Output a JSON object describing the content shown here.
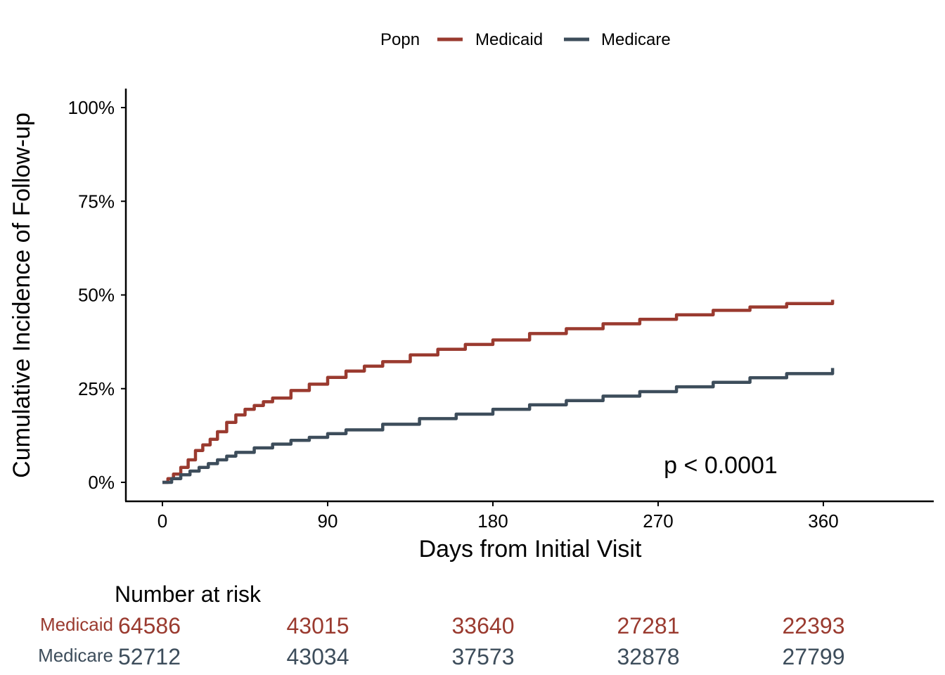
{
  "chart_data": {
    "type": "line",
    "xlabel": "Days from Initial Visit",
    "ylabel": "Cumulative Incidence of Follow-up",
    "xlim": [
      -20,
      420
    ],
    "ylim": [
      -0.05,
      1.05
    ],
    "x_ticks": [
      0,
      90,
      180,
      270,
      360
    ],
    "x_tick_labels": [
      "0",
      "90",
      "180",
      "270",
      "360"
    ],
    "y_ticks": [
      0,
      0.25,
      0.5,
      0.75,
      1.0
    ],
    "y_tick_labels": [
      "0%",
      "25%",
      "50%",
      "75%",
      "100%"
    ],
    "grid": false,
    "legend": {
      "title": "Popn",
      "position": "top",
      "entries": [
        "Medicaid",
        "Medicare"
      ]
    },
    "annotation": "p < 0.0001",
    "series": [
      {
        "name": "Medicaid",
        "color": "#9a3a2f",
        "points": [
          [
            0,
            0
          ],
          [
            3,
            0.01
          ],
          [
            6,
            0.022
          ],
          [
            10,
            0.04
          ],
          [
            14,
            0.06
          ],
          [
            18,
            0.085
          ],
          [
            22,
            0.1
          ],
          [
            26,
            0.115
          ],
          [
            30,
            0.135
          ],
          [
            35,
            0.16
          ],
          [
            40,
            0.18
          ],
          [
            45,
            0.195
          ],
          [
            50,
            0.205
          ],
          [
            55,
            0.215
          ],
          [
            60,
            0.225
          ],
          [
            70,
            0.245
          ],
          [
            80,
            0.262
          ],
          [
            90,
            0.28
          ],
          [
            100,
            0.297
          ],
          [
            110,
            0.31
          ],
          [
            120,
            0.322
          ],
          [
            135,
            0.34
          ],
          [
            150,
            0.355
          ],
          [
            165,
            0.368
          ],
          [
            180,
            0.38
          ],
          [
            200,
            0.397
          ],
          [
            220,
            0.41
          ],
          [
            240,
            0.423
          ],
          [
            260,
            0.435
          ],
          [
            280,
            0.447
          ],
          [
            300,
            0.459
          ],
          [
            320,
            0.468
          ],
          [
            340,
            0.477
          ],
          [
            365,
            0.487
          ]
        ]
      },
      {
        "name": "Medicare",
        "color": "#3d4d5b",
        "points": [
          [
            0,
            0
          ],
          [
            5,
            0.01
          ],
          [
            10,
            0.02
          ],
          [
            15,
            0.03
          ],
          [
            20,
            0.04
          ],
          [
            25,
            0.05
          ],
          [
            30,
            0.06
          ],
          [
            35,
            0.07
          ],
          [
            40,
            0.08
          ],
          [
            50,
            0.092
          ],
          [
            60,
            0.102
          ],
          [
            70,
            0.112
          ],
          [
            80,
            0.12
          ],
          [
            90,
            0.13
          ],
          [
            100,
            0.14
          ],
          [
            120,
            0.155
          ],
          [
            140,
            0.17
          ],
          [
            160,
            0.182
          ],
          [
            180,
            0.195
          ],
          [
            200,
            0.207
          ],
          [
            220,
            0.218
          ],
          [
            240,
            0.23
          ],
          [
            260,
            0.242
          ],
          [
            280,
            0.255
          ],
          [
            300,
            0.267
          ],
          [
            320,
            0.279
          ],
          [
            340,
            0.29
          ],
          [
            365,
            0.305
          ]
        ]
      }
    ]
  },
  "risk_table": {
    "title": "Number at risk",
    "times": [
      0,
      90,
      180,
      270,
      360
    ],
    "rows": [
      {
        "name": "Medicaid",
        "color": "#9a3a2f",
        "values": [
          "64586",
          "43015",
          "33640",
          "27281",
          "22393"
        ]
      },
      {
        "name": "Medicare",
        "color": "#3d4d5b",
        "values": [
          "52712",
          "43034",
          "37573",
          "32878",
          "27799"
        ]
      }
    ]
  }
}
